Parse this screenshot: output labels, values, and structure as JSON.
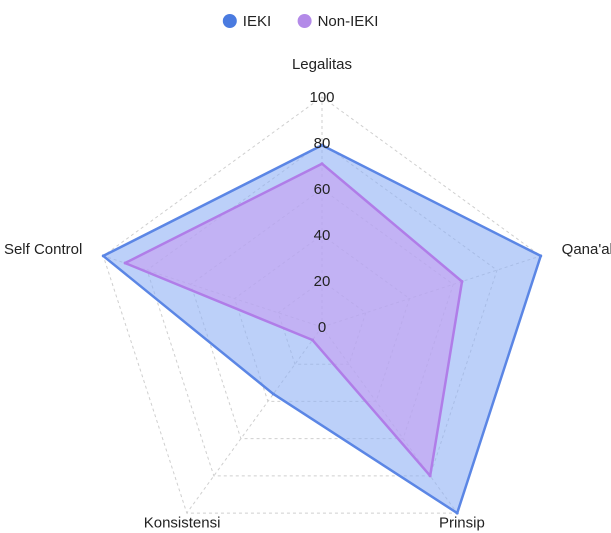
{
  "chart_data": {
    "type": "radar",
    "axes": [
      "Legalitas",
      "Qana'ah",
      "Prinsip",
      "Konsistensi",
      "Self Control"
    ],
    "r_ticks": [
      0,
      20,
      40,
      60,
      80,
      100
    ],
    "r_range": [
      0,
      100
    ],
    "grid": true,
    "legend_position": "top",
    "series": [
      {
        "name": "IEKI",
        "values": [
          79,
          100,
          100,
          36,
          100
        ],
        "color": "#5b86e5",
        "fill": "#8fb0f5"
      },
      {
        "name": "Non-IEKI",
        "values": [
          71,
          64,
          80,
          7,
          90
        ],
        "color": "#b07de8",
        "fill": "#c79ff0"
      }
    ]
  }
}
